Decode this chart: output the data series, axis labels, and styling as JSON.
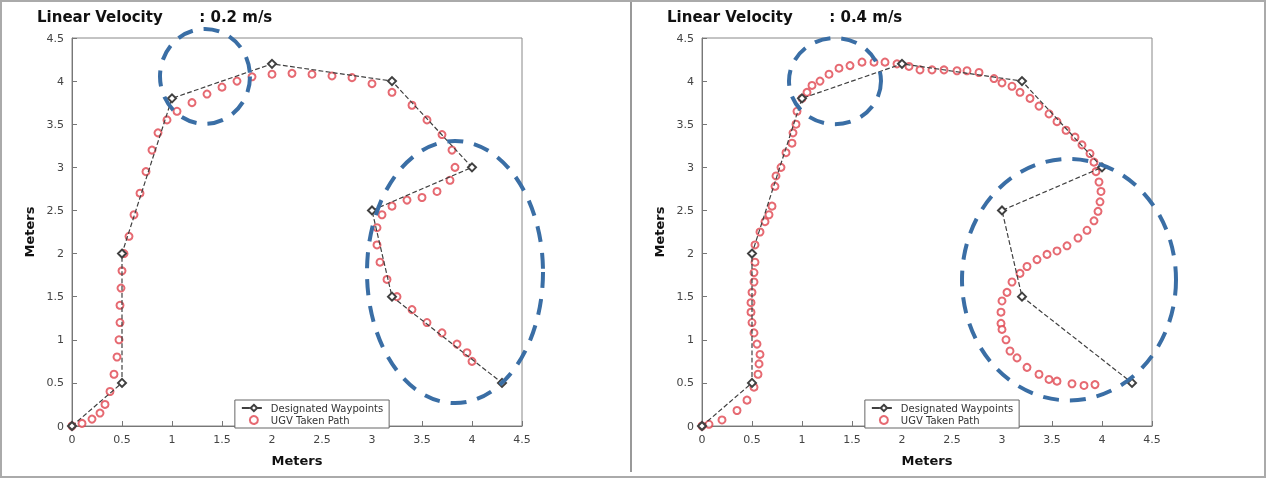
{
  "chart_data": [
    {
      "type": "scatter",
      "title": "Linear Velocity       : 0.2 m/s",
      "xlabel": "Meters",
      "ylabel": "Meters",
      "xlim": [
        0,
        4.5
      ],
      "ylim": [
        0,
        4.5
      ],
      "xticks": [
        0,
        0.5,
        1,
        1.5,
        2,
        2.5,
        3,
        3.5,
        4,
        4.5
      ],
      "yticks": [
        0,
        0.5,
        1,
        1.5,
        2,
        2.5,
        3,
        3.5,
        4,
        4.5
      ],
      "legend": "bottom",
      "grid": false,
      "series": [
        {
          "name": "Designated Waypoints",
          "type": "line",
          "marker": "diamond",
          "line_style": "dashed",
          "color": "#404040",
          "x": [
            0,
            0.5,
            0.5,
            1,
            2,
            3.2,
            4,
            3,
            3.2,
            4.3
          ],
          "values": [
            0,
            0.5,
            2,
            3.8,
            4.2,
            4,
            3,
            2.5,
            1.5,
            0.5
          ]
        },
        {
          "name": "UGV Taken Path",
          "marker": "circle",
          "color": "#e0454f",
          "x": [
            0,
            0.1,
            0.2,
            0.28,
            0.33,
            0.38,
            0.42,
            0.45,
            0.47,
            0.48,
            0.48,
            0.49,
            0.5,
            0.52,
            0.57,
            0.62,
            0.68,
            0.74,
            0.8,
            0.86,
            0.95,
            1.05,
            1.2,
            1.35,
            1.5,
            1.65,
            1.8,
            2.0,
            2.2,
            2.4,
            2.6,
            2.8,
            3.0,
            3.2,
            3.4,
            3.55,
            3.7,
            3.8,
            3.83,
            3.78,
            3.65,
            3.5,
            3.35,
            3.2,
            3.1,
            3.05,
            3.05,
            3.08,
            3.15,
            3.25,
            3.4,
            3.55,
            3.7,
            3.85,
            3.95,
            4.0
          ],
          "values": [
            0,
            0.03,
            0.08,
            0.15,
            0.25,
            0.4,
            0.6,
            0.8,
            1.0,
            1.2,
            1.4,
            1.6,
            1.8,
            2.0,
            2.2,
            2.45,
            2.7,
            2.95,
            3.2,
            3.4,
            3.55,
            3.65,
            3.75,
            3.85,
            3.93,
            4.0,
            4.05,
            4.08,
            4.09,
            4.08,
            4.06,
            4.04,
            3.97,
            3.87,
            3.72,
            3.55,
            3.38,
            3.2,
            3.0,
            2.85,
            2.72,
            2.65,
            2.62,
            2.55,
            2.45,
            2.3,
            2.1,
            1.9,
            1.7,
            1.5,
            1.35,
            1.2,
            1.08,
            0.95,
            0.85,
            0.75
          ]
        }
      ]
    },
    {
      "type": "scatter",
      "title": "Linear Velocity       : 0.4 m/s",
      "xlabel": "Meters",
      "ylabel": "Meters",
      "xlim": [
        0,
        4.5
      ],
      "ylim": [
        0,
        4.5
      ],
      "xticks": [
        0,
        0.5,
        1,
        1.5,
        2,
        2.5,
        3,
        3.5,
        4,
        4.5
      ],
      "yticks": [
        0,
        0.5,
        1,
        1.5,
        2,
        2.5,
        3,
        3.5,
        4,
        4.5
      ],
      "legend": "bottom",
      "grid": false,
      "series": [
        {
          "name": "Designated Waypoints",
          "type": "line",
          "marker": "diamond",
          "line_style": "dashed",
          "color": "#404040",
          "x": [
            0,
            0.5,
            0.5,
            1,
            2,
            3.2,
            4,
            3,
            3.2,
            4.3
          ],
          "values": [
            0,
            0.5,
            2,
            3.8,
            4.2,
            4,
            3,
            2.5,
            1.5,
            0.5
          ]
        },
        {
          "name": "UGV Taken Path",
          "marker": "circle",
          "color": "#e0454f",
          "x": [
            0,
            0.07,
            0.2,
            0.35,
            0.45,
            0.52,
            0.56,
            0.57,
            0.58,
            0.55,
            0.52,
            0.5,
            0.49,
            0.49,
            0.5,
            0.52,
            0.52,
            0.53,
            0.53,
            0.58,
            0.63,
            0.67,
            0.7,
            0.73,
            0.74,
            0.79,
            0.84,
            0.9,
            0.91,
            0.94,
            0.95,
            1.0,
            1.05,
            1.1,
            1.18,
            1.27,
            1.37,
            1.48,
            1.6,
            1.72,
            1.83,
            1.95,
            2.07,
            2.18,
            2.3,
            2.42,
            2.55,
            2.65,
            2.77,
            2.92,
            3.0,
            3.1,
            3.18,
            3.28,
            3.37,
            3.47,
            3.55,
            3.64,
            3.73,
            3.8,
            3.88,
            3.92,
            3.94,
            3.97,
            3.99,
            3.98,
            3.96,
            3.92,
            3.85,
            3.76,
            3.65,
            3.55,
            3.45,
            3.35,
            3.25,
            3.18,
            3.1,
            3.05,
            3.0,
            2.99,
            2.99,
            3.0,
            3.04,
            3.08,
            3.15,
            3.25,
            3.37,
            3.47,
            3.55,
            3.7,
            3.82,
            3.93
          ],
          "values": [
            0,
            0.02,
            0.07,
            0.18,
            0.3,
            0.45,
            0.6,
            0.72,
            0.83,
            0.95,
            1.08,
            1.2,
            1.32,
            1.43,
            1.55,
            1.67,
            1.78,
            1.9,
            2.1,
            2.25,
            2.37,
            2.45,
            2.55,
            2.78,
            2.9,
            3.0,
            3.17,
            3.28,
            3.4,
            3.5,
            3.65,
            3.8,
            3.87,
            3.95,
            4.0,
            4.08,
            4.15,
            4.18,
            4.22,
            4.22,
            4.22,
            4.2,
            4.17,
            4.13,
            4.13,
            4.13,
            4.12,
            4.12,
            4.1,
            4.03,
            3.98,
            3.94,
            3.87,
            3.8,
            3.71,
            3.62,
            3.53,
            3.43,
            3.35,
            3.26,
            3.16,
            3.06,
            2.95,
            2.83,
            2.72,
            2.6,
            2.49,
            2.38,
            2.27,
            2.18,
            2.09,
            2.03,
            1.99,
            1.93,
            1.85,
            1.77,
            1.67,
            1.55,
            1.45,
            1.32,
            1.19,
            1.12,
            1.0,
            0.87,
            0.79,
            0.68,
            0.6,
            0.54,
            0.52,
            0.49,
            0.47,
            0.48
          ]
        }
      ]
    }
  ]
}
